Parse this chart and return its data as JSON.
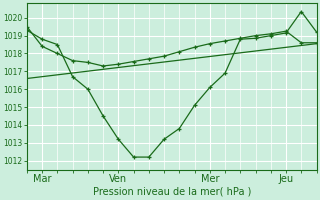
{
  "xlabel": "Pression niveau de la mer( hPa )",
  "bg_color": "#cceedd",
  "grid_color": "#ffffff",
  "line_color": "#1a6b1a",
  "ylim": [
    1011.5,
    1020.8
  ],
  "day_labels": [
    "Mar",
    "Ven",
    "Mer",
    "Jeu"
  ],
  "xtick_positions": [
    0.5,
    3.0,
    6.0,
    8.5
  ],
  "line1_x": [
    0.0,
    0.5,
    1.0,
    1.5,
    2.0,
    2.5,
    3.0,
    3.5,
    4.0,
    4.5,
    5.0,
    5.5,
    6.0,
    6.5,
    7.0,
    7.5,
    8.0,
    8.5,
    9.0,
    9.5
  ],
  "line1_y": [
    1019.3,
    1018.8,
    1018.5,
    1016.7,
    1016.0,
    1014.5,
    1013.2,
    1012.2,
    1012.2,
    1013.2,
    1013.8,
    1015.1,
    1016.1,
    1016.9,
    1018.8,
    1018.85,
    1019.0,
    1019.15,
    1020.35,
    1019.2
  ],
  "line2_x": [
    0.0,
    0.5,
    1.0,
    1.5,
    2.0,
    2.5,
    3.0,
    3.5,
    4.0,
    4.5,
    5.0,
    5.5,
    6.0,
    6.5,
    7.0,
    7.5,
    8.0,
    8.5,
    9.0,
    9.5
  ],
  "line2_y": [
    1019.5,
    1018.4,
    1018.0,
    1017.6,
    1017.5,
    1017.3,
    1017.4,
    1017.55,
    1017.7,
    1017.85,
    1018.1,
    1018.35,
    1018.55,
    1018.7,
    1018.85,
    1019.0,
    1019.1,
    1019.25,
    1018.6,
    1018.6
  ],
  "line3_x": [
    0.0,
    9.5
  ],
  "line3_y": [
    1016.6,
    1018.55
  ],
  "xlim": [
    0.0,
    9.5
  ],
  "ytick_values": [
    1012,
    1013,
    1014,
    1015,
    1016,
    1017,
    1018,
    1019,
    1020
  ],
  "marker": "+"
}
